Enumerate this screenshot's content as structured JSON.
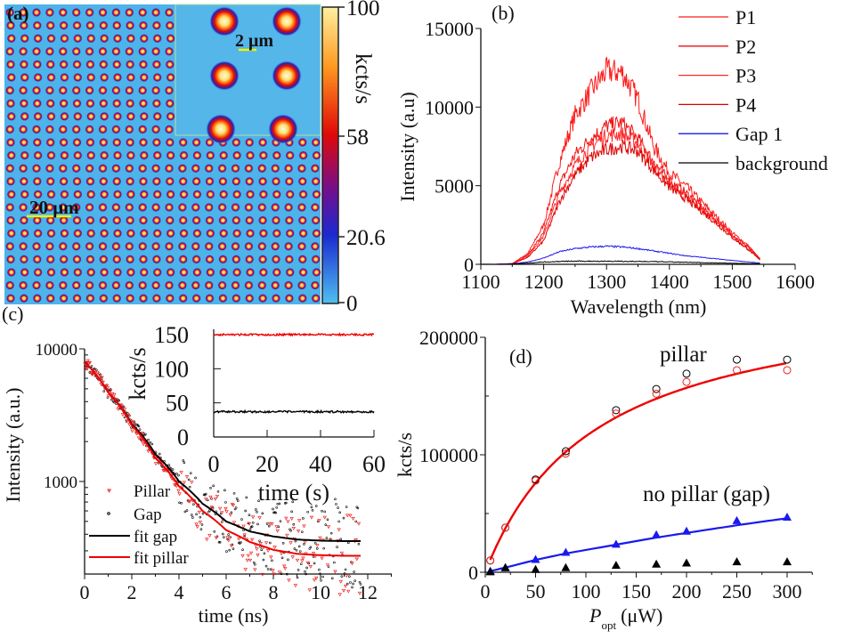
{
  "chart_data": [
    {
      "type": "heatmap",
      "panel_label": "(a)",
      "scale_bar_main": "20 μm",
      "scale_bar_inset": "2 μm",
      "colorbar": {
        "label": "kcts/s",
        "ticks": [
          "100",
          "58",
          "20.6",
          "0"
        ],
        "range": [
          0,
          100
        ]
      },
      "colors": {
        "background": "#4db3e8",
        "low": "#1a2ad0",
        "mid": "#e01010",
        "high": "#fff2a0",
        "scale_bar": "#f2f200"
      }
    },
    {
      "type": "line",
      "panel_label": "(b)",
      "xlabel": "Wavelength (nm)",
      "ylabel": "Intensity (a.u)",
      "xlim": [
        1100,
        1600
      ],
      "ylim": [
        0,
        15000
      ],
      "xticks": [
        1100,
        1200,
        1300,
        1400,
        1500,
        1600
      ],
      "yticks": [
        0,
        5000,
        10000,
        15000
      ],
      "legend": "top-right",
      "x": [
        1100,
        1125,
        1150,
        1175,
        1200,
        1225,
        1250,
        1275,
        1300,
        1325,
        1350,
        1375,
        1400,
        1425,
        1450,
        1475,
        1500,
        1525,
        1545
      ],
      "series": [
        {
          "name": "P1",
          "color": "#ff1a1a",
          "values": [
            0,
            0,
            50,
            700,
            2500,
            6500,
            9500,
            11000,
            12300,
            12200,
            10500,
            7500,
            5800,
            5000,
            4000,
            3000,
            2000,
            1200,
            300
          ]
        },
        {
          "name": "P2",
          "color": "#ee1111",
          "values": [
            0,
            0,
            40,
            600,
            2000,
            5000,
            7000,
            8000,
            8800,
            9000,
            8000,
            6500,
            5300,
            4600,
            3700,
            2800,
            1900,
            1100,
            300
          ]
        },
        {
          "name": "P3",
          "color": "#ff2a2a",
          "values": [
            0,
            0,
            40,
            550,
            1800,
            4500,
            6300,
            7500,
            8200,
            8300,
            7700,
            6300,
            5100,
            4400,
            3500,
            2700,
            1800,
            1000,
            250
          ]
        },
        {
          "name": "P4",
          "color": "#dd0000",
          "values": [
            0,
            0,
            30,
            450,
            1500,
            4000,
            5700,
            6800,
            7300,
            7500,
            7200,
            6000,
            4900,
            4200,
            3400,
            2600,
            1700,
            950,
            250
          ]
        },
        {
          "name": "Gap 1",
          "color": "#1a1aee",
          "values": [
            0,
            0,
            30,
            150,
            400,
            800,
            1000,
            1100,
            1150,
            1100,
            1000,
            850,
            700,
            550,
            450,
            350,
            250,
            150,
            80
          ]
        },
        {
          "name": "background",
          "color": "#000000",
          "values": [
            0,
            0,
            20,
            80,
            150,
            180,
            200,
            200,
            200,
            190,
            180,
            170,
            150,
            130,
            110,
            90,
            70,
            50,
            40
          ]
        }
      ]
    },
    {
      "type": "scatter",
      "panel_label": "(c)",
      "xlabel": "time (ns)",
      "ylabel": "Intensity (a.u.)",
      "yscale": "log",
      "xlim": [
        0,
        13
      ],
      "ylim": [
        200,
        10000
      ],
      "xticks": [
        0,
        2,
        4,
        6,
        8,
        10,
        12
      ],
      "yticks": [
        1000,
        10000
      ],
      "legend": "bottom-left",
      "x": [
        0,
        1,
        2,
        3,
        4,
        5,
        6,
        7,
        8,
        9,
        10,
        11,
        11.7
      ],
      "series": [
        {
          "name": "Pillar",
          "kind": "scatter",
          "marker": "triangle-down",
          "color": "#ee2222",
          "values": [
            8000,
            4700,
            2650,
            1500,
            920,
            600,
            430,
            350,
            305,
            285,
            278,
            275,
            275
          ]
        },
        {
          "name": "Gap",
          "kind": "scatter",
          "marker": "circle",
          "color": "#000000",
          "values": [
            8000,
            4700,
            2700,
            1600,
            1000,
            680,
            500,
            420,
            385,
            365,
            358,
            355,
            355
          ]
        },
        {
          "name": "fit gap",
          "kind": "line",
          "color": "#000000",
          "values": [
            8000,
            4700,
            2700,
            1600,
            1000,
            680,
            500,
            420,
            385,
            365,
            358,
            355,
            355
          ]
        },
        {
          "name": "fit pillar",
          "kind": "line",
          "color": "#ee0000",
          "values": [
            8000,
            4700,
            2650,
            1500,
            920,
            600,
            430,
            350,
            305,
            285,
            278,
            275,
            275
          ]
        }
      ]
    },
    {
      "type": "line",
      "panel_label": "",
      "xlabel": "time (s)",
      "ylabel": "kcts/s",
      "xlim": [
        0,
        60
      ],
      "ylim": [
        0,
        150
      ],
      "xticks": [
        0,
        20,
        40,
        60
      ],
      "yticks": [
        0,
        50,
        100,
        150
      ],
      "x": [
        0,
        60
      ],
      "series": [
        {
          "color": "#ee0000",
          "values": [
            150,
            150
          ]
        },
        {
          "color": "#000000",
          "values": [
            37,
            37
          ]
        }
      ]
    },
    {
      "type": "scatter",
      "panel_label": "(d)",
      "xlabel_main": "P",
      "xlabel_sub": "opt",
      "xlabel_unit": "(μW)",
      "ylabel": "kcts/s",
      "xlim": [
        0,
        320
      ],
      "ylim": [
        0,
        200000
      ],
      "xticks": [
        0,
        50,
        100,
        150,
        200,
        250,
        300
      ],
      "yticks": [
        0,
        100000,
        200000
      ],
      "annotations": [
        {
          "text": "pillar",
          "color": "#ee0000"
        },
        {
          "text": "no pillar (gap)",
          "color": "#1a1aee"
        }
      ],
      "x": [
        5,
        20,
        50,
        80,
        130,
        170,
        200,
        250,
        300
      ],
      "series": [
        {
          "kind": "scatter",
          "marker": "open-circle",
          "color": "#000000",
          "values": [
            10000,
            38000,
            79000,
            103000,
            138000,
            156000,
            169000,
            181000,
            181000
          ]
        },
        {
          "kind": "scatter",
          "marker": "open-circle",
          "color": "#ee2222",
          "values": [
            10000,
            38000,
            78000,
            101000,
            135000,
            152000,
            162000,
            172000,
            172000
          ]
        },
        {
          "kind": "line",
          "color": "#ee0000",
          "values": [
            10600,
            37000,
            76000,
            102600,
            131800,
            147700,
            157000,
            169000,
            178000
          ]
        },
        {
          "kind": "scatter",
          "marker": "triangle",
          "color": "#1a1aee",
          "values": [
            1000,
            4000,
            11000,
            17000,
            24000,
            32000,
            35000,
            44000,
            47000
          ]
        },
        {
          "kind": "line",
          "color": "#1a1aee",
          "values": [
            1000,
            4000,
            10500,
            16000,
            23500,
            29500,
            33500,
            40000,
            46000
          ]
        },
        {
          "kind": "scatter",
          "marker": "triangle",
          "color": "#000000",
          "values": [
            500,
            4000,
            2500,
            4000,
            6000,
            7000,
            8000,
            9000,
            9000
          ]
        }
      ]
    }
  ]
}
